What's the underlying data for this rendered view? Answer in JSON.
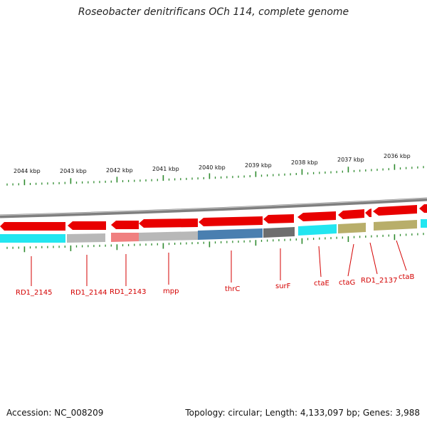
{
  "title": "Roseobacter denitrificans OCh 114, complete genome",
  "accession": "Accession: NC_008209",
  "summary": "Topology: circular; Length: 4,133,097 bp; Genes: 3,988",
  "colors": {
    "backbone": "#8a8a8a",
    "gene_arrow": "#e80000",
    "tick": "#2e8b2e",
    "label": "#d40000",
    "cyan": "#22e6f0",
    "gray": "#b8b8b8",
    "pink": "#f08080",
    "blue": "#4a7fb0",
    "dark_gray": "#6e6e6e",
    "khaki": "#b8ae6a"
  },
  "scale_labels": [
    "2044 kbp",
    "2043 kbp",
    "2042 kbp",
    "2041 kbp",
    "2040 kbp",
    "2039 kbp",
    "2038 kbp",
    "2037 kbp",
    "2036 kbp"
  ],
  "genes": [
    "RD1_2145",
    "RD1_2144",
    "RD1_2143",
    "mpp",
    "thrC",
    "surF",
    "ctaE",
    "ctaG",
    "RD1_2137",
    "ctaB"
  ]
}
